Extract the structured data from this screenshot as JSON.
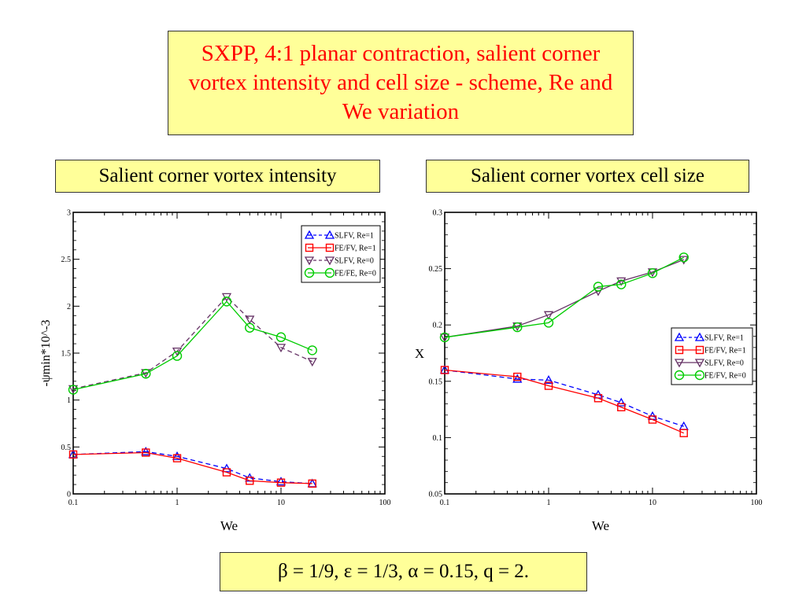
{
  "title": "SXPP, 4:1 planar contraction, salient corner vortex intensity and cell size - scheme, Re and We variation",
  "left_panel_title": "Salient corner vortex intensity",
  "right_panel_title": "Salient corner vortex cell size",
  "parameters": "β = 1/9, ε = 1/3, α = 0.15, q = 2.",
  "chart_data": [
    {
      "type": "line",
      "xlabel": "We",
      "ylabel": "-ψmin*10^-3",
      "x_scale": "log",
      "xlim": [
        0.1,
        100
      ],
      "ylim": [
        0,
        3
      ],
      "x_ticks": [
        "0.1",
        "1",
        "10",
        "100"
      ],
      "y_ticks": [
        "0",
        "0.5",
        "1",
        "1.5",
        "2",
        "2.5",
        "3"
      ],
      "legend_position": "top-right",
      "series": [
        {
          "name": "SLFV, Re=1",
          "color": "#0000ff",
          "dash": true,
          "marker": "triangle-up",
          "x": [
            0.1,
            0.5,
            1,
            3,
            5,
            10,
            20
          ],
          "y": [
            0.42,
            0.45,
            0.4,
            0.27,
            0.17,
            0.13,
            0.11
          ]
        },
        {
          "name": "FE/FV, Re=1",
          "color": "#ff0000",
          "dash": false,
          "marker": "square",
          "x": [
            0.1,
            0.5,
            1,
            3,
            5,
            10,
            20
          ],
          "y": [
            0.42,
            0.44,
            0.38,
            0.23,
            0.14,
            0.12,
            0.11
          ]
        },
        {
          "name": "SLFV, Re=0",
          "color": "#663366",
          "dash": true,
          "marker": "triangle-down",
          "x": [
            0.1,
            0.5,
            1,
            3,
            5,
            10,
            20
          ],
          "y": [
            1.12,
            1.29,
            1.52,
            2.1,
            1.86,
            1.56,
            1.41
          ]
        },
        {
          "name": "FE/FE, Re=0",
          "color": "#00cc00",
          "dash": false,
          "marker": "circle",
          "x": [
            0.1,
            0.5,
            1,
            3,
            5,
            10,
            20
          ],
          "y": [
            1.11,
            1.28,
            1.47,
            2.05,
            1.77,
            1.67,
            1.53
          ]
        }
      ]
    },
    {
      "type": "line",
      "xlabel": "We",
      "ylabel": "X",
      "x_scale": "log",
      "xlim": [
        0.1,
        100
      ],
      "ylim": [
        0.05,
        0.3
      ],
      "x_ticks": [
        "0.1",
        "1",
        "10",
        "100"
      ],
      "y_ticks": [
        "0.05",
        "0.1",
        "0.15",
        "0.2",
        "0.25",
        "0.3"
      ],
      "legend_position": "center-right",
      "series": [
        {
          "name": "SLFV, Re=1",
          "color": "#0000ff",
          "dash": true,
          "marker": "triangle-up",
          "x": [
            0.1,
            0.5,
            1,
            3,
            5,
            10,
            20
          ],
          "y": [
            0.16,
            0.152,
            0.151,
            0.138,
            0.131,
            0.119,
            0.11
          ]
        },
        {
          "name": "FE/FV, Re=1",
          "color": "#ff0000",
          "dash": false,
          "marker": "square",
          "x": [
            0.1,
            0.5,
            1,
            3,
            5,
            10,
            20
          ],
          "y": [
            0.16,
            0.154,
            0.146,
            0.135,
            0.127,
            0.116,
            0.104
          ]
        },
        {
          "name": "SLFV, Re=0",
          "color": "#663366",
          "dash": false,
          "marker": "triangle-down",
          "x": [
            0.1,
            0.5,
            1,
            3,
            5,
            10,
            20
          ],
          "y": [
            0.189,
            0.199,
            0.209,
            0.23,
            0.239,
            0.247,
            0.258
          ]
        },
        {
          "name": "FE/FV, Re=0",
          "color": "#00cc00",
          "dash": false,
          "marker": "circle",
          "x": [
            0.1,
            0.5,
            1,
            3,
            5,
            10,
            20
          ],
          "y": [
            0.189,
            0.198,
            0.202,
            0.234,
            0.236,
            0.246,
            0.26
          ]
        }
      ]
    }
  ]
}
